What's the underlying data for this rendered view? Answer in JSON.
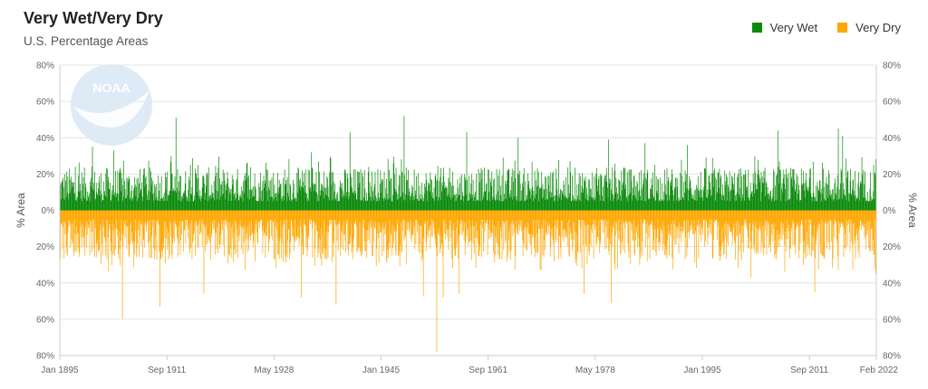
{
  "header": {
    "title": "Very Wet/Very Dry",
    "subtitle": "U.S. Percentage Areas"
  },
  "legend": [
    {
      "label": "Very Wet",
      "color": "#0b8a0b"
    },
    {
      "label": "Very Dry",
      "color": "#ffa600"
    }
  ],
  "watermark": {
    "text": "NOAA"
  },
  "chart_data": {
    "type": "bar",
    "title": "Very Wet/Very Dry",
    "subtitle": "U.S. Percentage Areas",
    "ylabel_left": "% Area",
    "ylabel_right": "% Area",
    "ylim": [
      -80,
      80
    ],
    "y_ticks": [
      80,
      60,
      40,
      20,
      0,
      -20,
      -40,
      -60,
      -80
    ],
    "y_tick_labels": [
      "80%",
      "60%",
      "40%",
      "20%",
      "0%",
      "20%",
      "40%",
      "60%",
      "80%"
    ],
    "x_range": [
      "1895-01",
      "2022-02"
    ],
    "x_tick_labels": [
      {
        "date": "1895-01",
        "label": "Jan 1895"
      },
      {
        "date": "1911-09",
        "label": "Sep 1911"
      },
      {
        "date": "1928-05",
        "label": "May 1928"
      },
      {
        "date": "1945-01",
        "label": "Jan 1945"
      },
      {
        "date": "1961-09",
        "label": "Sep 1961"
      },
      {
        "date": "1978-05",
        "label": "May 1978"
      },
      {
        "date": "1995-01",
        "label": "Jan 1995"
      },
      {
        "date": "2011-09",
        "label": "Sep 2011"
      },
      {
        "date": "2022-02",
        "label": "Feb 2022"
      }
    ],
    "grid": true,
    "legend_position": "top-right",
    "series": [
      {
        "name": "Very Wet",
        "color": "#0b8a0b",
        "direction": "up",
        "typical_range": [
          5,
          22
        ],
        "peaks": [
          {
            "date": "1900-02",
            "value": 35
          },
          {
            "date": "1903-06",
            "value": 33
          },
          {
            "date": "1912-05",
            "value": 30
          },
          {
            "date": "1913-02",
            "value": 51
          },
          {
            "date": "1916-07",
            "value": 25
          },
          {
            "date": "1934-03",
            "value": 32
          },
          {
            "date": "1940-03",
            "value": 43
          },
          {
            "date": "1948-08",
            "value": 52
          },
          {
            "date": "1958-05",
            "value": 43
          },
          {
            "date": "1966-05",
            "value": 40
          },
          {
            "date": "1980-06",
            "value": 39
          },
          {
            "date": "1986-02",
            "value": 37
          },
          {
            "date": "1992-09",
            "value": 36
          },
          {
            "date": "2006-10",
            "value": 44
          },
          {
            "date": "2016-03",
            "value": 45
          },
          {
            "date": "2016-11",
            "value": 41
          },
          {
            "date": "2021-09",
            "value": 25
          }
        ]
      },
      {
        "name": "Very Dry",
        "color": "#ffa600",
        "direction": "down",
        "typical_range": [
          5,
          25
        ],
        "peaks": [
          {
            "date": "1902-08",
            "value": 34
          },
          {
            "date": "1904-10",
            "value": 60
          },
          {
            "date": "1910-08",
            "value": 53
          },
          {
            "date": "1917-06",
            "value": 46
          },
          {
            "date": "1932-08",
            "value": 48
          },
          {
            "date": "1938-01",
            "value": 52
          },
          {
            "date": "1951-08",
            "value": 47
          },
          {
            "date": "1953-09",
            "value": 78
          },
          {
            "date": "1954-09",
            "value": 48
          },
          {
            "date": "1957-03",
            "value": 46
          },
          {
            "date": "1976-08",
            "value": 46
          },
          {
            "date": "1980-11",
            "value": 51
          },
          {
            "date": "2002-08",
            "value": 37
          },
          {
            "date": "2007-11",
            "value": 34
          },
          {
            "date": "2012-07",
            "value": 45
          },
          {
            "date": "2022-01",
            "value": 35
          }
        ]
      }
    ]
  }
}
